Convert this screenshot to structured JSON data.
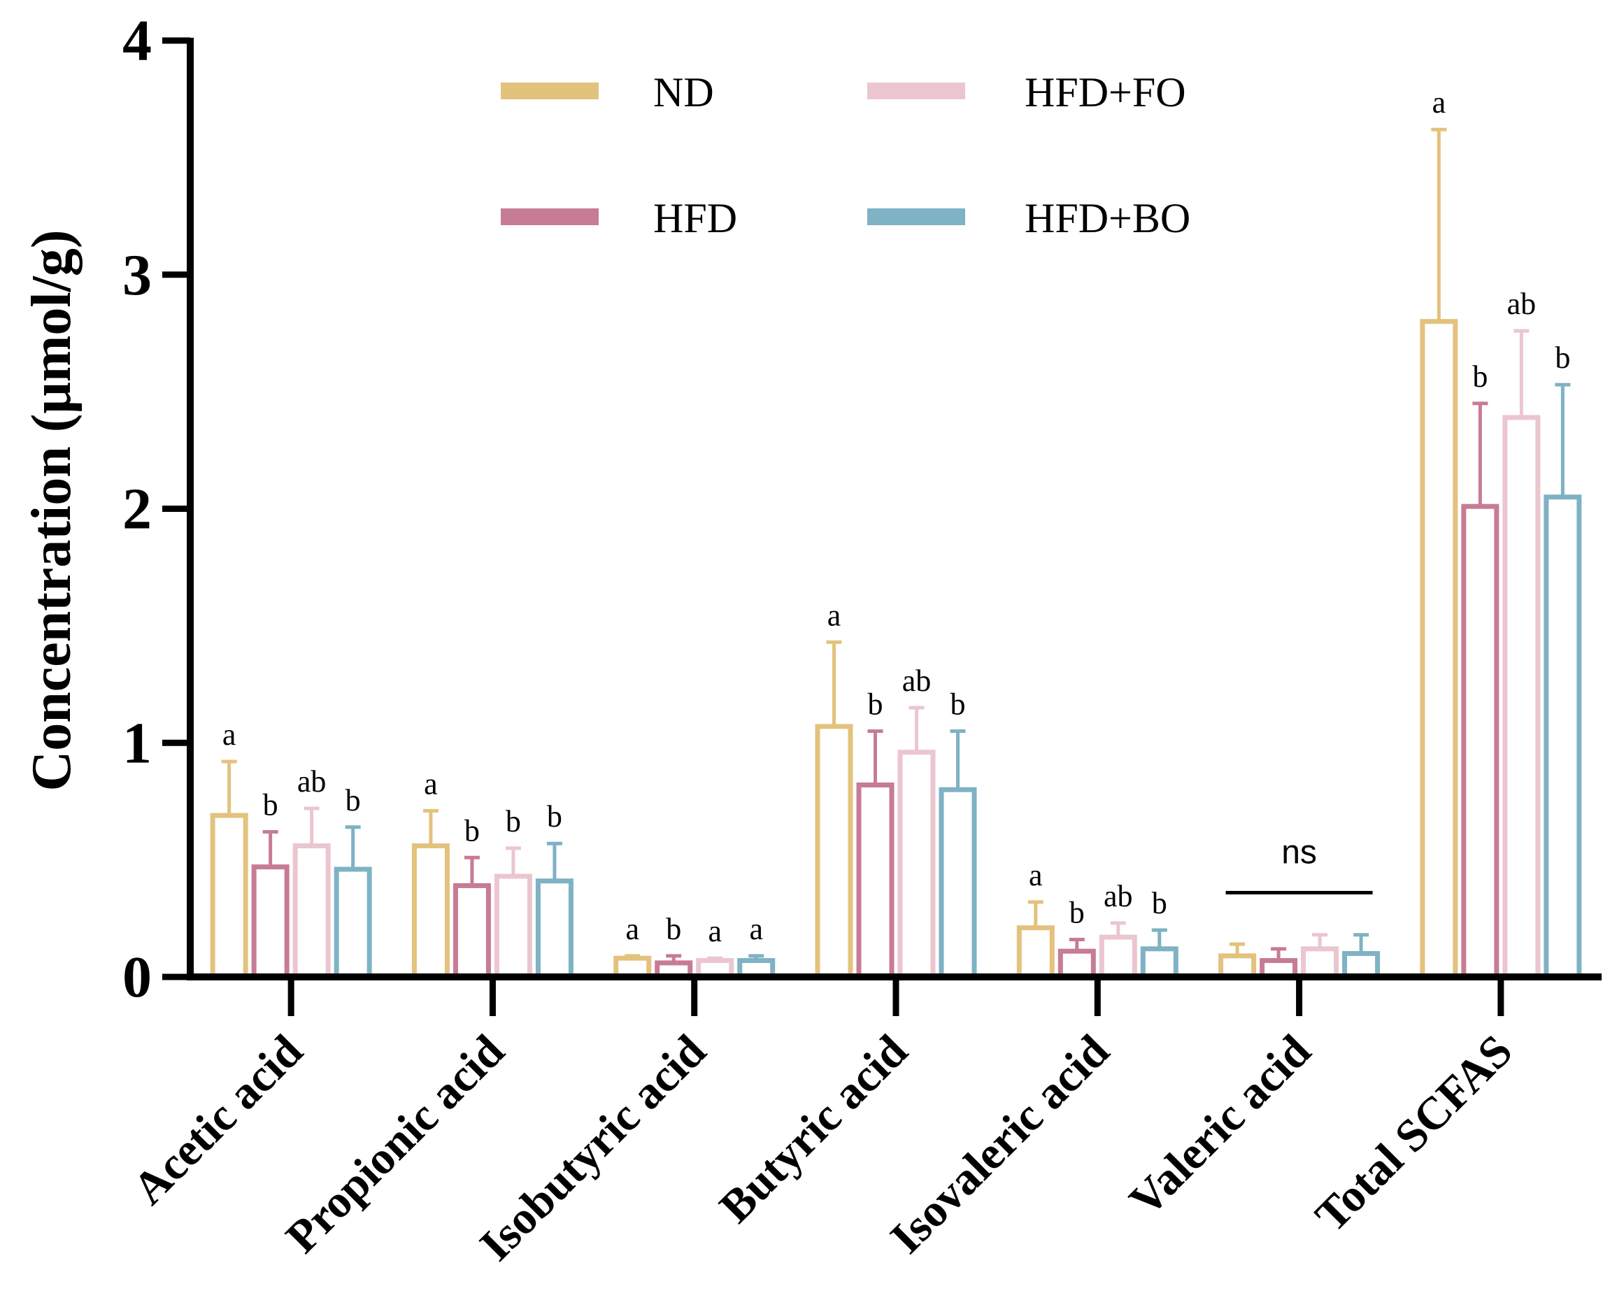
{
  "chart_data": {
    "type": "bar",
    "title": "",
    "xlabel": "",
    "ylabel": "Concentration (μmol/g)",
    "ylim": [
      0,
      4
    ],
    "yticks": [
      "0",
      "1",
      "2",
      "3",
      "4"
    ],
    "categories": [
      "Acetic acid",
      "Propionic acid",
      "Isobutyric acid",
      "Butyric acid",
      "Isovaleric acid",
      "Valeric acid",
      "Total SCFAS"
    ],
    "series": [
      {
        "name": "ND",
        "color": "#E3C27D",
        "values": [
          0.69,
          0.56,
          0.08,
          1.07,
          0.21,
          0.09,
          2.8
        ],
        "errors": [
          0.23,
          0.15,
          0.01,
          0.36,
          0.11,
          0.05,
          0.82
        ],
        "labels": [
          "a",
          "a",
          "a",
          "a",
          "a",
          "",
          "a"
        ]
      },
      {
        "name": "HFD",
        "color": "#C77B95",
        "values": [
          0.47,
          0.39,
          0.06,
          0.82,
          0.11,
          0.07,
          2.01
        ],
        "errors": [
          0.15,
          0.12,
          0.03,
          0.23,
          0.05,
          0.05,
          0.44
        ],
        "labels": [
          "b",
          "b",
          "b",
          "b",
          "b",
          "",
          "b"
        ]
      },
      {
        "name": "HFD+FO",
        "color": "#EBC6CF",
        "values": [
          0.56,
          0.43,
          0.07,
          0.96,
          0.17,
          0.12,
          2.39
        ],
        "errors": [
          0.16,
          0.12,
          0.01,
          0.19,
          0.06,
          0.06,
          0.37
        ],
        "labels": [
          "ab",
          "b",
          "a",
          "ab",
          "ab",
          "",
          "ab"
        ]
      },
      {
        "name": "HFD+BO",
        "color": "#7EB2C4",
        "values": [
          0.46,
          0.41,
          0.07,
          0.8,
          0.12,
          0.1,
          2.05
        ],
        "errors": [
          0.18,
          0.16,
          0.02,
          0.25,
          0.08,
          0.08,
          0.48
        ],
        "labels": [
          "b",
          "b",
          "a",
          "b",
          "b",
          "",
          "b"
        ]
      }
    ],
    "annotations": [
      {
        "category": "Valeric acid",
        "text": "ns"
      }
    ],
    "legend": {
      "position": "top",
      "columns": 2
    }
  }
}
